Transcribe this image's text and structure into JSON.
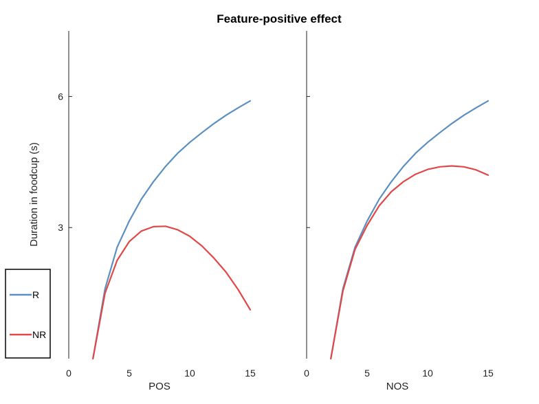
{
  "chart_data": {
    "type": "line",
    "title": "Feature-positive effect",
    "ylabel": "Duration in foodcup (s)",
    "ylim": [
      0,
      7.5
    ],
    "yticks": [
      3,
      6
    ],
    "grid": false,
    "legend": {
      "placement": "bottom-left",
      "entries": [
        {
          "name": "R",
          "color": "#5b8fbf"
        },
        {
          "name": "NR",
          "color": "#e04848"
        }
      ]
    },
    "panels": [
      {
        "xlabel": "POS",
        "xlim": [
          0,
          15
        ],
        "xticks": [
          0,
          5,
          10,
          15
        ],
        "series": [
          {
            "name": "R",
            "color": "#5b8fbf",
            "x": [
              2,
              3,
              4,
              5,
              6,
              7,
              8,
              9,
              10,
              11,
              12,
              13,
              14,
              15
            ],
            "y": [
              0.0,
              1.6,
              2.55,
              3.15,
              3.65,
              4.05,
              4.4,
              4.7,
              4.95,
              5.17,
              5.38,
              5.57,
              5.74,
              5.9
            ]
          },
          {
            "name": "NR",
            "color": "#e04848",
            "x": [
              2,
              3,
              4,
              5,
              6,
              7,
              8,
              9,
              10,
              11,
              12,
              13,
              14,
              15
            ],
            "y": [
              0.0,
              1.5,
              2.25,
              2.68,
              2.92,
              3.02,
              3.03,
              2.95,
              2.8,
              2.58,
              2.3,
              1.98,
              1.58,
              1.12
            ]
          }
        ]
      },
      {
        "xlabel": "NOS",
        "xlim": [
          0,
          15
        ],
        "xticks": [
          0,
          5,
          10,
          15
        ],
        "series": [
          {
            "name": "R",
            "color": "#5b8fbf",
            "x": [
              2,
              3,
              4,
              5,
              6,
              7,
              8,
              9,
              10,
              11,
              12,
              13,
              14,
              15
            ],
            "y": [
              0.0,
              1.6,
              2.55,
              3.15,
              3.65,
              4.05,
              4.4,
              4.7,
              4.95,
              5.17,
              5.38,
              5.57,
              5.74,
              5.9
            ]
          },
          {
            "name": "NR",
            "color": "#e04848",
            "x": [
              2,
              3,
              4,
              5,
              6,
              7,
              8,
              9,
              10,
              11,
              12,
              13,
              14,
              15
            ],
            "y": [
              0.0,
              1.55,
              2.5,
              3.05,
              3.5,
              3.82,
              4.05,
              4.22,
              4.33,
              4.39,
              4.41,
              4.39,
              4.32,
              4.2
            ]
          }
        ]
      }
    ]
  }
}
